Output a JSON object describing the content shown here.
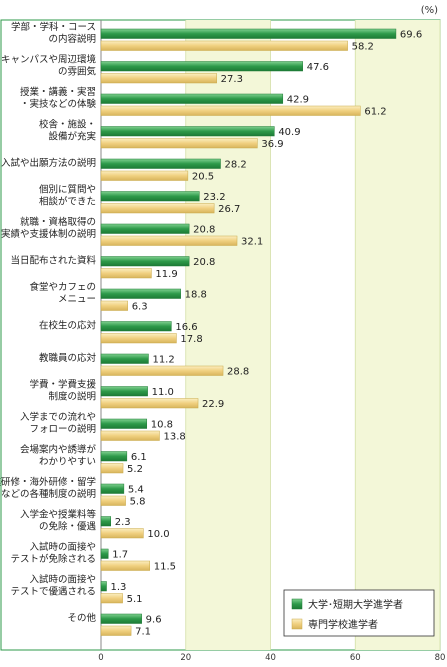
{
  "chart_data": {
    "type": "bar",
    "orientation": "horizontal",
    "unit": "(%)",
    "xlim": [
      0,
      80
    ],
    "xticks": [
      0,
      20,
      40,
      60,
      80
    ],
    "legend_position": "bottom-right",
    "categories": [
      [
        "学部・学科・コース",
        "の内容説明"
      ],
      [
        "キャンパスや周辺環境",
        "の雰囲気"
      ],
      [
        "授業・講義・実習",
        "・実技などの体験"
      ],
      [
        "校舎・施設・",
        "設備が充実"
      ],
      [
        "入試や出願方法の説明"
      ],
      [
        "個別に質問や",
        "相談ができた"
      ],
      [
        "就職・資格取得の",
        "実績や支援体制の説明"
      ],
      [
        "当日配布された資料"
      ],
      [
        "食堂やカフェの",
        "メニュー"
      ],
      [
        "在校生の応対"
      ],
      [
        "教職員の応対"
      ],
      [
        "学費・学費支援",
        "制度の説明"
      ],
      [
        "入学までの流れや",
        "フォローの説明"
      ],
      [
        "会場案内や誘導が",
        "わかりやすい"
      ],
      [
        "企業研修・海外研修・留学",
        "などの各種制度の説明"
      ],
      [
        "入学金や授業料等",
        "の免除・優遇"
      ],
      [
        "入試時の面接や",
        "テストが免除される"
      ],
      [
        "入試時の面接や",
        "テストで優遇される"
      ],
      [
        "その他"
      ]
    ],
    "series": [
      {
        "name": "大学･短期大学進学者",
        "color": "#2e9a4a",
        "values": [
          69.6,
          47.6,
          42.9,
          40.9,
          28.2,
          23.2,
          20.8,
          20.8,
          18.8,
          16.6,
          11.2,
          11.0,
          10.8,
          6.1,
          5.4,
          2.3,
          1.7,
          1.3,
          9.6
        ]
      },
      {
        "name": "専門学校進学者",
        "color": "#f0d080",
        "values": [
          58.2,
          27.3,
          61.2,
          36.9,
          20.5,
          26.7,
          32.1,
          11.9,
          6.3,
          17.8,
          28.8,
          22.9,
          13.8,
          5.2,
          5.8,
          10.0,
          11.5,
          5.1,
          7.1
        ]
      }
    ]
  }
}
